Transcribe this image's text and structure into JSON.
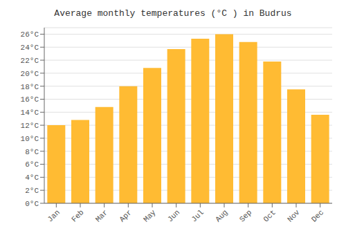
{
  "chart_data": {
    "type": "bar",
    "title": "Average monthly temperatures (°C ) in Budrus",
    "categories": [
      "Jan",
      "Feb",
      "Mar",
      "Apr",
      "May",
      "Jun",
      "Jul",
      "Aug",
      "Sep",
      "Oct",
      "Nov",
      "Dec"
    ],
    "values": [
      12.0,
      12.8,
      14.8,
      18.0,
      20.8,
      23.7,
      25.3,
      26.0,
      24.8,
      21.8,
      17.5,
      13.6
    ],
    "color": "#FFBB33",
    "ylim": [
      0,
      27
    ],
    "yticks": [
      {
        "value": 0,
        "label": "0°C"
      },
      {
        "value": 2,
        "label": "2°C"
      },
      {
        "value": 4,
        "label": "4°C"
      },
      {
        "value": 6,
        "label": "6°C"
      },
      {
        "value": 8,
        "label": "8°C"
      },
      {
        "value": 10,
        "label": "10°C"
      },
      {
        "value": 12,
        "label": "12°C"
      },
      {
        "value": 14,
        "label": "14°C"
      },
      {
        "value": 16,
        "label": "16°C"
      },
      {
        "value": 18,
        "label": "18°C"
      },
      {
        "value": 20,
        "label": "20°C"
      },
      {
        "value": 22,
        "label": "22°C"
      },
      {
        "value": 24,
        "label": "24°C"
      },
      {
        "value": 26,
        "label": "26°C"
      }
    ],
    "grid": true
  }
}
